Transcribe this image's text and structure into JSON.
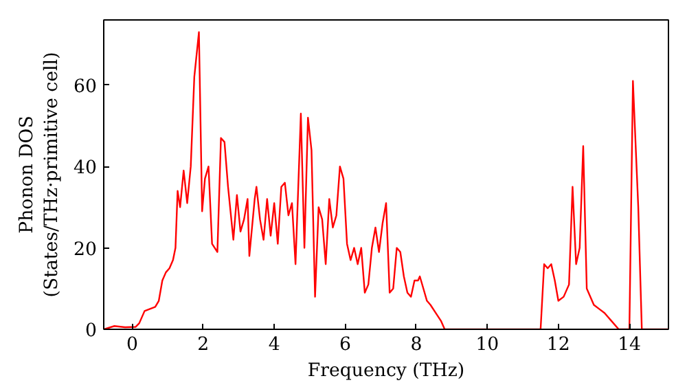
{
  "chart_data": {
    "type": "line",
    "xlabel": "Frequency (THz)",
    "ylabel": "Phonon DOS\n(States/THz·primitive cell)",
    "xlim": [
      -0.8,
      15.1
    ],
    "ylim": [
      0,
      76
    ],
    "xticks": [
      0,
      2,
      4,
      6,
      8,
      10,
      12,
      14
    ],
    "yticks": [
      0,
      20,
      40,
      60
    ],
    "grid": false,
    "series": [
      {
        "color": "#ff0000",
        "x": [
          -0.8,
          -0.5,
          -0.2,
          0.1,
          0.2,
          0.35,
          0.5,
          0.65,
          0.75,
          0.85,
          0.95,
          1.05,
          1.15,
          1.22,
          1.28,
          1.35,
          1.45,
          1.55,
          1.65,
          1.75,
          1.88,
          1.97,
          2.05,
          2.15,
          2.25,
          2.4,
          2.5,
          2.6,
          2.7,
          2.85,
          2.95,
          3.05,
          3.15,
          3.25,
          3.3,
          3.45,
          3.5,
          3.6,
          3.7,
          3.8,
          3.9,
          4.0,
          4.1,
          4.2,
          4.3,
          4.4,
          4.5,
          4.6,
          4.75,
          4.85,
          4.95,
          5.05,
          5.15,
          5.25,
          5.35,
          5.45,
          5.55,
          5.65,
          5.75,
          5.85,
          5.95,
          6.05,
          6.15,
          6.25,
          6.35,
          6.45,
          6.55,
          6.65,
          6.75,
          6.85,
          6.95,
          7.05,
          7.15,
          7.25,
          7.35,
          7.45,
          7.55,
          7.65,
          7.75,
          7.85,
          7.95,
          8.05,
          8.1,
          8.2,
          8.3,
          8.4,
          8.55,
          8.7,
          8.8,
          11.5,
          11.6,
          11.7,
          11.8,
          11.9,
          12.0,
          12.15,
          12.3,
          12.4,
          12.5,
          12.6,
          12.7,
          12.8,
          13.0,
          13.15,
          13.3,
          13.5,
          13.7,
          14.0,
          14.1,
          14.25,
          14.35,
          15.1
        ],
        "values": [
          0,
          0.8,
          0.5,
          0.6,
          1.5,
          4.5,
          5,
          5.5,
          7,
          12,
          14,
          15,
          17,
          20,
          34,
          30,
          39,
          31,
          40,
          62,
          73,
          29,
          37,
          40,
          21,
          19,
          47,
          46,
          35,
          22,
          33,
          24,
          27,
          32,
          18,
          32,
          35,
          27,
          22,
          32,
          23,
          31,
          21,
          35,
          36,
          28,
          31,
          16,
          53,
          20,
          52,
          44,
          8,
          30,
          27,
          16,
          32,
          25,
          28,
          40,
          37,
          21,
          17,
          20,
          16,
          20,
          9,
          11,
          20,
          25,
          19,
          26,
          31,
          9,
          10,
          20,
          19,
          13,
          9,
          8,
          12,
          12,
          13,
          10,
          7,
          6,
          4,
          2,
          0,
          0,
          16,
          15,
          16,
          12,
          7,
          8,
          11,
          35,
          16,
          20,
          45,
          10,
          6,
          5,
          4,
          2,
          0,
          0,
          61,
          30,
          0,
          0
        ]
      }
    ]
  }
}
